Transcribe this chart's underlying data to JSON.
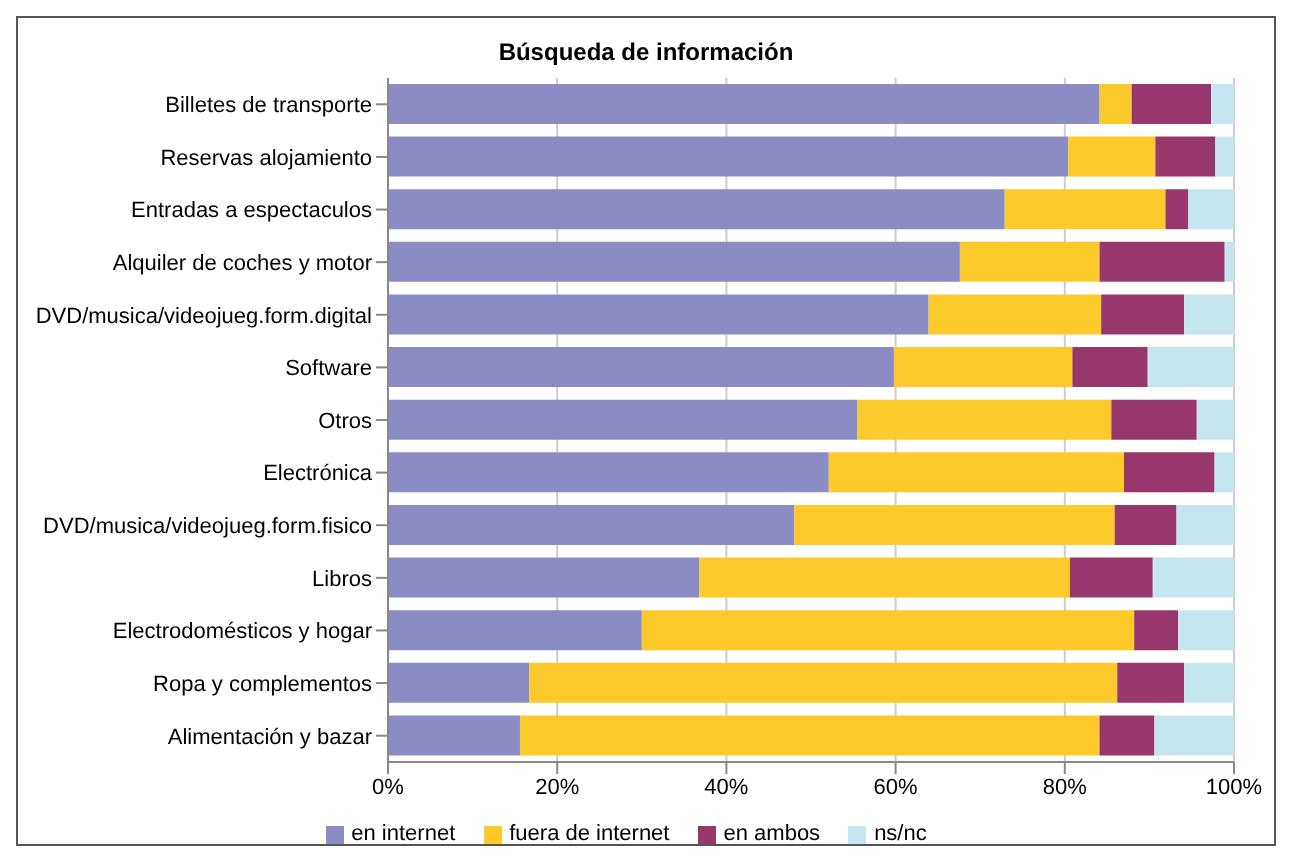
{
  "chart_data": {
    "type": "bar",
    "title": "Búsqueda de información",
    "orientation": "horizontal",
    "stacked": true,
    "categories": [
      "Billetes de transporte",
      "Reservas alojamiento",
      "Entradas a espectaculos",
      "Alquiler de coches y motor",
      "DVD/musica/videojueg.form.digital",
      "Software",
      "Otros",
      "Electrónica",
      "DVD/musica/videojueg.form.fisico",
      "Libros",
      "Electrodomésticos y hogar",
      "Ropa y complementos",
      "Alimentación y bazar"
    ],
    "series": [
      {
        "name": "en internet",
        "color": "#8b8cc4",
        "values": [
          84.1,
          80.4,
          72.9,
          67.6,
          63.9,
          59.8,
          55.5,
          52.1,
          48.0,
          36.8,
          30.0,
          16.7,
          15.6
        ]
      },
      {
        "name": "fuera de internet",
        "color": "#fdca2b",
        "values": [
          3.8,
          10.3,
          19.0,
          16.5,
          20.4,
          21.1,
          30.0,
          34.9,
          37.9,
          43.8,
          58.2,
          69.5,
          68.5
        ]
      },
      {
        "name": "en ambos",
        "color": "#98376b",
        "values": [
          9.4,
          7.1,
          2.7,
          14.8,
          9.8,
          8.9,
          10.1,
          10.7,
          7.3,
          9.8,
          5.2,
          7.9,
          6.5
        ]
      },
      {
        "name": "ns/nc",
        "color": "#c5e6ef",
        "values": [
          2.7,
          2.2,
          5.4,
          1.1,
          5.9,
          10.2,
          4.4,
          2.3,
          6.8,
          9.6,
          6.6,
          5.9,
          9.4
        ]
      }
    ],
    "xlim": [
      0,
      100
    ],
    "xticks": [
      {
        "value": 0,
        "label": "0%"
      },
      {
        "value": 20,
        "label": "20%"
      },
      {
        "value": 40,
        "label": "40%"
      },
      {
        "value": 60,
        "label": "60%"
      },
      {
        "value": 80,
        "label": "80%"
      },
      {
        "value": 100,
        "label": "100%"
      }
    ],
    "grid": "x",
    "legend": "bottom"
  }
}
